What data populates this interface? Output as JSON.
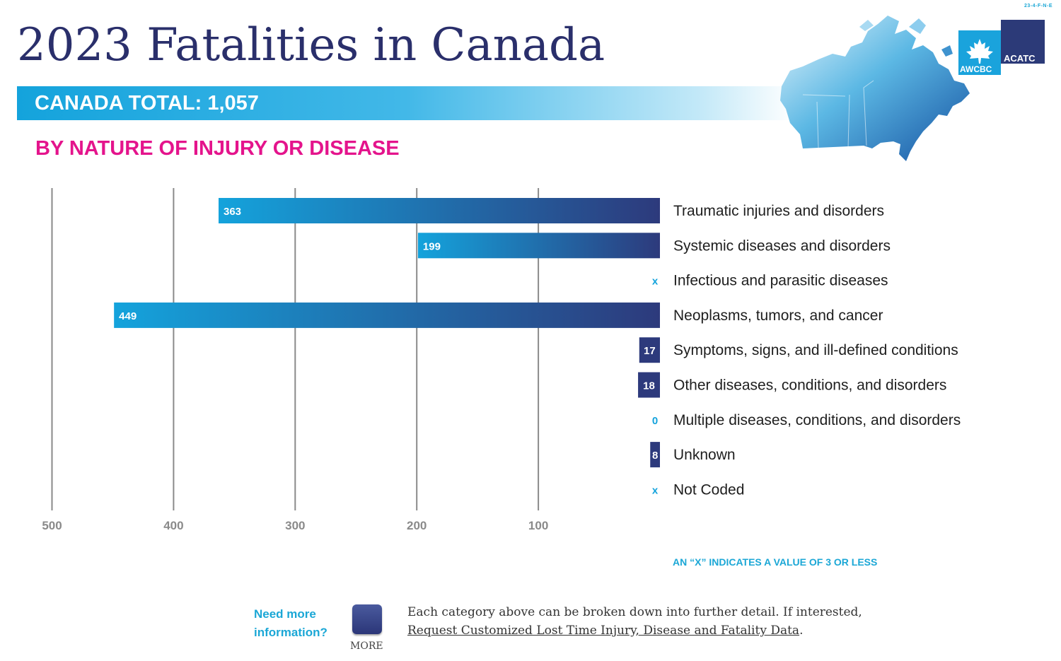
{
  "doc_code": "23-4-F-N-E",
  "title": "2023 Fatalities in Canada",
  "total_label": "CANADA TOTAL: 1,057",
  "subtitle": "BY NATURE OF INJURY OR DISEASE",
  "logo": {
    "left": "AWCBC",
    "right": "ACATC"
  },
  "colors": {
    "navy": "#2d3a7c",
    "cyan": "#14a3dc",
    "magenta": "#e4148c",
    "title": "#2a2f6b"
  },
  "chart_data": {
    "type": "bar",
    "orientation": "horizontal",
    "direction": "right-to-left",
    "title": "BY NATURE OF INJURY OR DISEASE",
    "xlim": [
      0,
      500
    ],
    "x_ticks": [
      500,
      400,
      300,
      200,
      100
    ],
    "grid": true,
    "categories": [
      "Traumatic injuries and disorders",
      "Systemic diseases and disorders",
      "Infectious and parasitic diseases",
      "Neoplasms, tumors, and cancer",
      "Symptoms, signs, and ill-defined conditions",
      "Other diseases, conditions, and disorders",
      "Multiple diseases, conditions, and disorders",
      "Unknown",
      "Not Coded"
    ],
    "values": [
      363,
      199,
      null,
      449,
      17,
      18,
      0,
      8,
      null
    ],
    "value_labels": [
      "363",
      "199",
      "x",
      "449",
      "17",
      "18",
      "0",
      "8",
      "x"
    ]
  },
  "footnote": "AN “X” INDICATES A VALUE OF 3 OR LESS",
  "more_info": {
    "question_line1": "Need more",
    "question_line2": "information?",
    "button_label": "MORE",
    "text": "Each category above can be broken down into further detail. If interested,",
    "link_text": "Request Customized Lost Time Injury, Disease and Fatality Data",
    "link_suffix": "."
  }
}
